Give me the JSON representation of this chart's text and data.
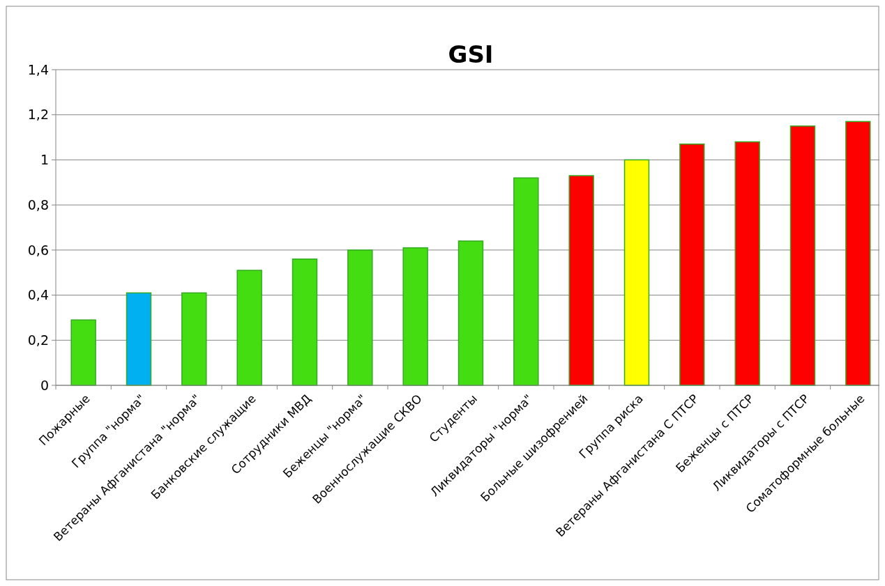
{
  "chart_data": {
    "type": "bar",
    "title": "GSI",
    "categories": [
      "Пожарные",
      "Группа \"норма\"",
      "Ветераны Афганистана \"норма\"",
      "Банковские служащие",
      "Сотрудники МВД",
      "Беженцы \"норма\"",
      "Военнослужащие СКВО",
      "Студенты",
      "Ликвидаторы \"норма\"",
      "Больные шизофренией",
      "Группа риска",
      "Ветераны Афганистана С ПТСР",
      "Беженцы с ПТСР",
      "Ликвидаторы с ПТСР",
      "Соматоформные больные"
    ],
    "values": [
      0.29,
      0.41,
      0.41,
      0.51,
      0.56,
      0.6,
      0.61,
      0.64,
      0.92,
      0.93,
      1.0,
      1.07,
      1.08,
      1.15,
      1.17
    ],
    "colors": [
      "#44dd11",
      "#00b0f0",
      "#44dd11",
      "#44dd11",
      "#44dd11",
      "#44dd11",
      "#44dd11",
      "#44dd11",
      "#44dd11",
      "#ff0000",
      "#ffff00",
      "#ff0000",
      "#ff0000",
      "#ff0000",
      "#ff0000"
    ],
    "ylim": [
      0,
      1.4
    ],
    "yticks": [
      0,
      {
        "value": 0.2,
        "label": "0,2"
      },
      {
        "value": 0.4,
        "label": "0,4"
      },
      {
        "value": 0.6,
        "label": "0,6"
      },
      {
        "value": 0.8,
        "label": "0,8"
      },
      1,
      {
        "value": 1.2,
        "label": "1,2"
      },
      {
        "value": 1.4,
        "label": "1,4"
      }
    ],
    "grid": "y"
  }
}
